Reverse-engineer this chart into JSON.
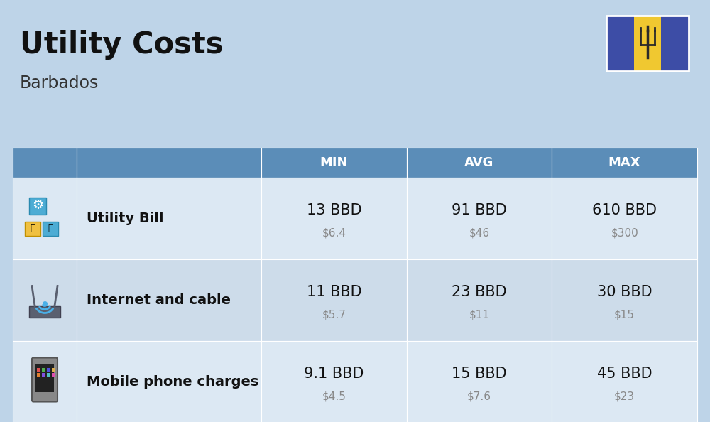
{
  "title": "Utility Costs",
  "subtitle": "Barbados",
  "background_color": "#bed4e8",
  "header_bg_color": "#5b8db8",
  "header_text_color": "#ffffff",
  "row_bg_color_odd": "#dce8f3",
  "row_bg_color_even": "#cddcea",
  "table_border_color": "#ffffff",
  "columns": [
    "MIN",
    "AVG",
    "MAX"
  ],
  "rows": [
    {
      "label": "Utility Bill",
      "icon": "utility",
      "min_bbd": "13 BBD",
      "min_usd": "$6.4",
      "avg_bbd": "91 BBD",
      "avg_usd": "$46",
      "max_bbd": "610 BBD",
      "max_usd": "$300"
    },
    {
      "label": "Internet and cable",
      "icon": "internet",
      "min_bbd": "11 BBD",
      "min_usd": "$5.7",
      "avg_bbd": "23 BBD",
      "avg_usd": "$11",
      "max_bbd": "30 BBD",
      "max_usd": "$15"
    },
    {
      "label": "Mobile phone charges",
      "icon": "mobile",
      "min_bbd": "9.1 BBD",
      "min_usd": "$4.5",
      "avg_bbd": "15 BBD",
      "avg_usd": "$7.6",
      "max_bbd": "45 BBD",
      "max_usd": "$23"
    }
  ],
  "flag_blue": "#3d4da6",
  "flag_yellow": "#f0c830",
  "flag_trident": "#2a2a2a",
  "title_fontsize": 30,
  "subtitle_fontsize": 17,
  "header_fontsize": 13,
  "cell_bbd_fontsize": 15,
  "cell_usd_fontsize": 11,
  "label_fontsize": 14
}
